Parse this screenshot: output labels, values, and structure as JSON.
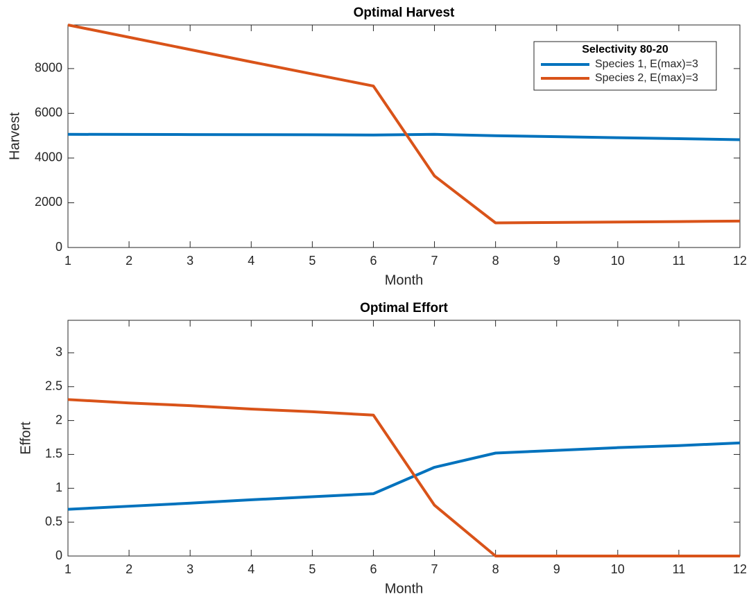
{
  "chart_data": [
    {
      "type": "line",
      "title": "Optimal Harvest",
      "x_label": "Month",
      "y_label": "Harvest",
      "x": [
        1,
        2,
        3,
        4,
        5,
        6,
        7,
        8,
        9,
        10,
        11,
        12
      ],
      "series": [
        {
          "name": "Species 1, E(max)=3",
          "color": "#0072BD",
          "values": [
            5060,
            5055,
            5050,
            5045,
            5040,
            5030,
            5060,
            5000,
            4955,
            4910,
            4865,
            4820
          ]
        },
        {
          "name": "Species 2, E(max)=3",
          "color": "#D95319",
          "values": [
            9950,
            9400,
            8850,
            8300,
            7760,
            7220,
            3200,
            1100,
            1120,
            1140,
            1160,
            1180
          ]
        }
      ],
      "xlim": [
        1,
        12
      ],
      "xticks": [
        1,
        2,
        3,
        4,
        5,
        6,
        7,
        8,
        9,
        10,
        11,
        12
      ],
      "ylim": [
        0,
        9950
      ],
      "yticks": [
        0,
        2000,
        4000,
        6000,
        8000
      ],
      "legend_title": "Selectivity 80-20",
      "legend": "northeast",
      "grid": false
    },
    {
      "type": "line",
      "title": "Optimal Effort",
      "x_label": "Month",
      "y_label": "Effort",
      "x": [
        1,
        2,
        3,
        4,
        5,
        6,
        7,
        8,
        9,
        10,
        11,
        12
      ],
      "series": [
        {
          "name": "Species 1, E(max)=3",
          "color": "#0072BD",
          "values": [
            0.69,
            0.735,
            0.78,
            0.83,
            0.875,
            0.92,
            1.31,
            1.52,
            1.56,
            1.6,
            1.63,
            1.67
          ]
        },
        {
          "name": "Species 2, E(max)=3",
          "color": "#D95319",
          "values": [
            2.31,
            2.26,
            2.22,
            2.17,
            2.13,
            2.08,
            0.75,
            0,
            0,
            0,
            0,
            0
          ]
        }
      ],
      "xlim": [
        1,
        12
      ],
      "xticks": [
        1,
        2,
        3,
        4,
        5,
        6,
        7,
        8,
        9,
        10,
        11,
        12
      ],
      "ylim": [
        0,
        3.48
      ],
      "yticks": [
        0,
        0.5,
        1,
        1.5,
        2,
        2.5,
        3
      ],
      "grid": false
    }
  ]
}
